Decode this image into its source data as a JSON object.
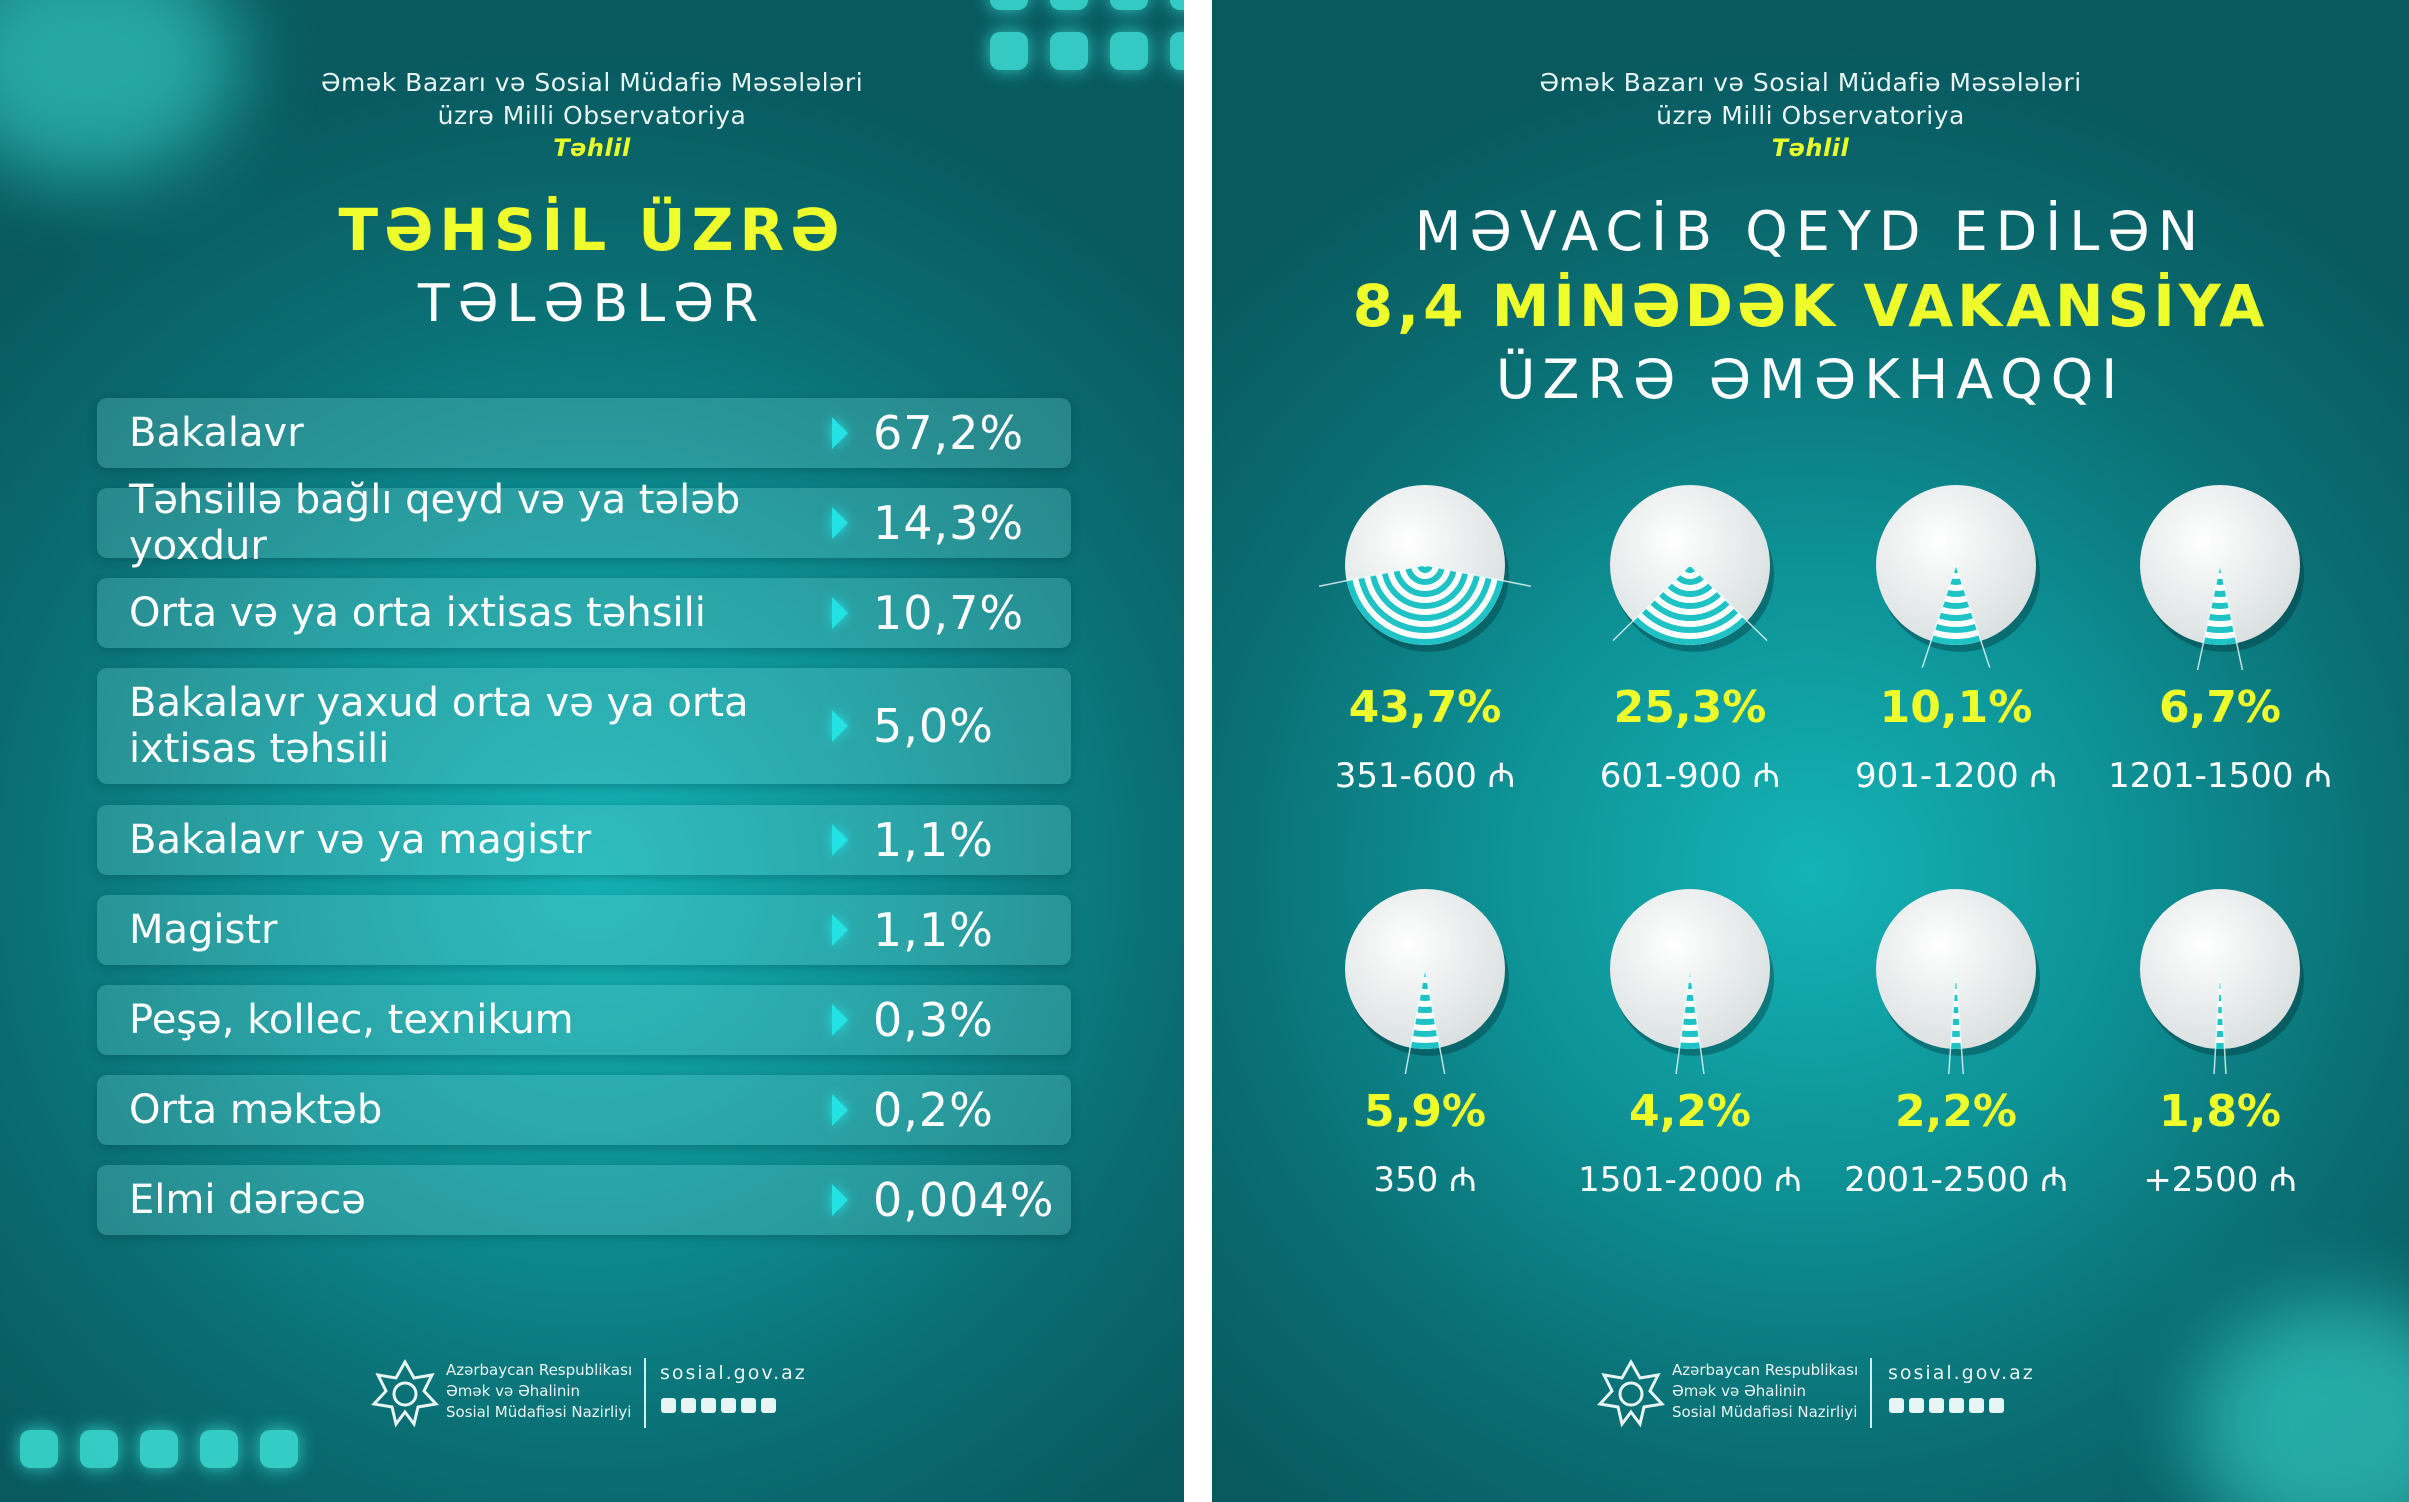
{
  "org": {
    "line1": "Əmək Bazarı və Sosial Müdafiə Məsələləri",
    "line2": "üzrə Milli Observatoriya",
    "sub": "Təhlil"
  },
  "left": {
    "title1": "TƏHSİL ÜZRƏ",
    "title2": "TƏLƏBLƏR",
    "rows": [
      {
        "label": "Bakalavr",
        "value": "67,2%"
      },
      {
        "label": "Təhsillə bağlı qeyd və ya tələb yoxdur",
        "value": "14,3%"
      },
      {
        "label": "Orta və ya orta ixtisas təhsili",
        "value": "10,7%"
      },
      {
        "label": "Bakalavr yaxud orta və ya orta ixtisas təhsili",
        "value": "5,0%"
      },
      {
        "label": "Bakalavr və ya magistr",
        "value": "1,1%"
      },
      {
        "label": "Magistr",
        "value": "1,1%"
      },
      {
        "label": "Peşə, kollec, texnikum",
        "value": "0,3%"
      },
      {
        "label": "Orta məktəb",
        "value": "0,2%"
      },
      {
        "label": "Elmi dərəcə",
        "value": "0,004%"
      }
    ]
  },
  "right": {
    "title1": "MƏVACİB QEYD EDİLƏN",
    "title2": "8,4 MİNƏDƏK VAKANSİYA",
    "title3": "ÜZRƏ ƏMƏKHAQQI",
    "items": [
      {
        "pct": "43,7%",
        "range": "351-600 ₼",
        "share": 43.7
      },
      {
        "pct": "25,3%",
        "range": "601-900 ₼",
        "share": 25.3
      },
      {
        "pct": "10,1%",
        "range": "901-1200 ₼",
        "share": 10.1
      },
      {
        "pct": "6,7%",
        "range": "1201-1500 ₼",
        "share": 6.7
      },
      {
        "pct": "5,9%",
        "range": "350 ₼",
        "share": 5.9
      },
      {
        "pct": "4,2%",
        "range": "1501-2000 ₼",
        "share": 4.2
      },
      {
        "pct": "2,2%",
        "range": "2001-2500 ₼",
        "share": 2.2
      },
      {
        "pct": "1,8%",
        "range": "+2500 ₼",
        "share": 1.8
      }
    ]
  },
  "footer": {
    "org1": "Azərbaycan Respublikası",
    "org2": "Əmək və Əhalinin",
    "org3": "Sosial Müdafiəsi Nazirliyi",
    "site": "sosial.gov.az",
    "social_icons": [
      "facebook-icon",
      "instagram-icon",
      "telegram-icon",
      "x-icon",
      "youtube-icon",
      "linkedin-icon"
    ]
  },
  "colors": {
    "accent_yellow": "#efff2c",
    "accent_cyan": "#23e2e3",
    "panel_teal": "#0d8f93"
  }
}
